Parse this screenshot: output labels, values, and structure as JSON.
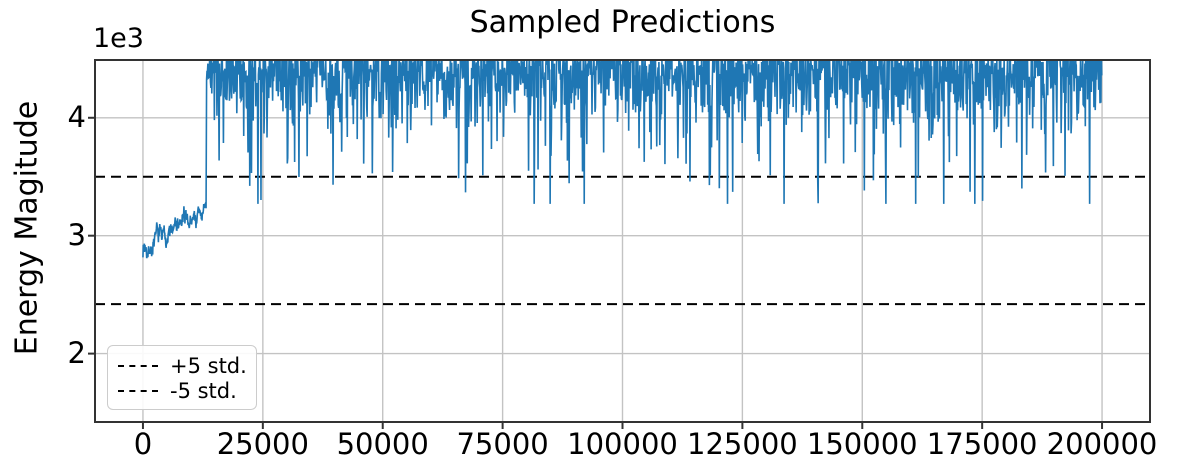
{
  "chart_data": {
    "type": "line",
    "title": "Sampled Predictions",
    "xlabel": "",
    "ylabel": "Energy Magitude",
    "y_offset_text": "1e3",
    "grid": true,
    "xlim": [
      -10000,
      210000
    ],
    "ylim": [
      1420,
      4490
    ],
    "xticks": [
      0,
      25000,
      50000,
      75000,
      100000,
      125000,
      150000,
      175000,
      200000
    ],
    "xtick_labels": [
      "0",
      "25000",
      "50000",
      "75000",
      "100000",
      "125000",
      "150000",
      "175000",
      "200000"
    ],
    "yticks": [
      2000,
      3000,
      4000
    ],
    "ytick_labels": [
      "2",
      "3",
      "4"
    ],
    "thresholds": [
      {
        "name": "+5 std.",
        "value": 3500,
        "style": "dashed",
        "color": "#000000"
      },
      {
        "name": "-5 std.",
        "value": 2420,
        "style": "dashed",
        "color": "#000000"
      }
    ],
    "legend": {
      "position": "lower-left",
      "entries": [
        {
          "label": "+5 std.",
          "style": "dashed",
          "color": "#000000"
        },
        {
          "label": "-5 std.",
          "style": "dashed",
          "color": "#000000"
        }
      ]
    },
    "series": [
      {
        "name": "Sampled Predictions",
        "color": "#1f77b4",
        "line_width": 1.6,
        "description": "Noisy warm-up segment oscillating between ~2850 and ~3300 from step 0 to ~13000, then an abrupt jump to a dense band between ~4200 and the clipped plot top (~4490) with frequent downward spikes to 3900-4200, occasional spikes to ~3500 and rare spikes to ~3300, continuing to step 200000.",
        "generation": {
          "seed": 7,
          "segments": [
            {
              "type": "ramp_walk",
              "x_start": 0,
              "x_end": 13200,
              "step": 70,
              "v_start": 2900,
              "drift": 310,
              "walk_step": 95,
              "walk_decay": 0.88,
              "noise": 85,
              "clamp_min": 2815,
              "clamp_max": 3300
            },
            {
              "type": "spiky_band",
              "x_start": 13270,
              "x_end": 200000,
              "step": 90,
              "base": 4520,
              "base_noise": 150,
              "shallow_max": 420,
              "p_mid": 0.22,
              "mid_min": 150,
              "mid_span": 260,
              "p_deep": 0.034,
              "deep_min": 400,
              "deep_span": 300,
              "p_rare": 0.006,
              "rare_min": 300,
              "rare_span": 220,
              "floor": 3270
            }
          ]
        }
      }
    ],
    "style": {
      "line_color": "#1f77b4",
      "grid_color": "#c3c3c3",
      "spine_color": "#333333",
      "threshold_color": "#000000",
      "tick_color": "#333333",
      "background": "#ffffff"
    }
  }
}
